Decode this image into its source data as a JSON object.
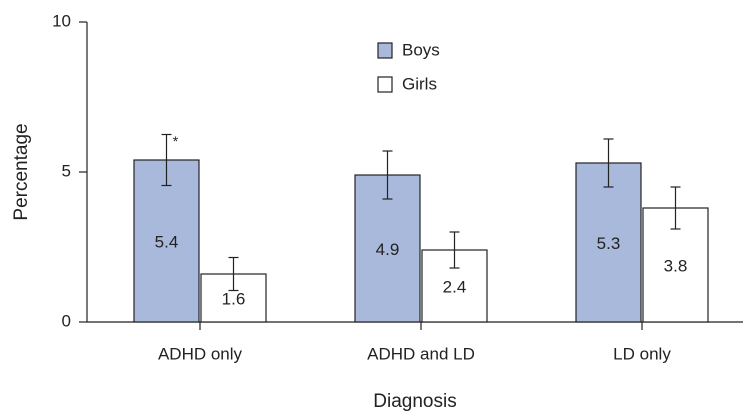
{
  "chart_data": {
    "type": "bar",
    "x_label": "Diagnosis",
    "y_label": "Percentage",
    "categories": [
      "ADHD only",
      "ADHD and LD",
      "LD only"
    ],
    "series": [
      {
        "name": "Boys",
        "color": "#a9b9dc",
        "values": [
          5.4,
          4.9,
          5.3
        ],
        "errors": [
          0.85,
          0.8,
          0.8
        ],
        "value_notes": [
          "*",
          null,
          null
        ]
      },
      {
        "name": "Girls",
        "color": "#ffffff",
        "values": [
          1.6,
          2.4,
          3.8
        ],
        "errors": [
          0.55,
          0.6,
          0.7
        ]
      }
    ],
    "ylim": [
      0,
      10
    ],
    "yticks": [
      0,
      5,
      10
    ],
    "grid": false,
    "legend": "upper center"
  }
}
